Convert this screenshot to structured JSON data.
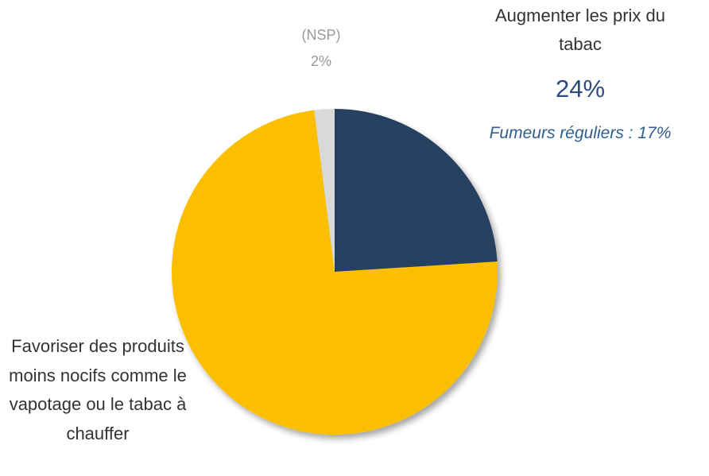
{
  "chart_data": {
    "type": "pie",
    "categories": [
      "Augmenter les prix du tabac",
      "Favoriser des produits moins nocifs comme le vapotage ou le tabac à chauffer",
      "(NSP)"
    ],
    "values": [
      24,
      74,
      2
    ],
    "value_labels": [
      "24%",
      null,
      "2%"
    ],
    "colors": [
      "#253f60",
      "#fbbf00",
      "#d9d9d9"
    ],
    "annotation": "Fumeurs réguliers : 17%"
  }
}
